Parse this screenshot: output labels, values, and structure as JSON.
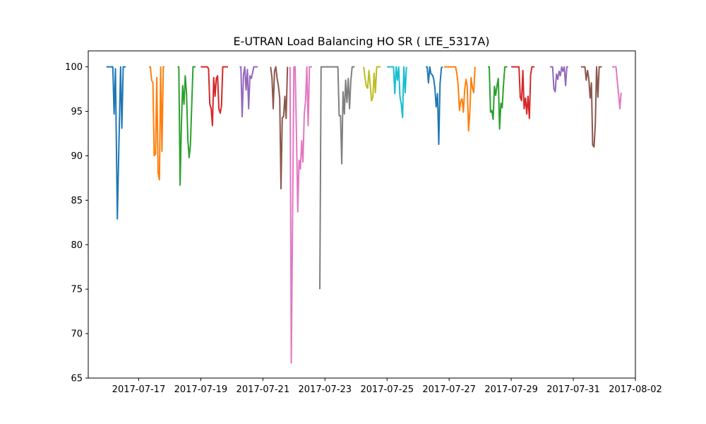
{
  "chart_data": {
    "type": "line",
    "title": "E-UTRAN Load Balancing HO SR ( LTE_5317A)",
    "xlabel": "",
    "ylabel": "",
    "x_axis": {
      "type": "date",
      "range": [
        "2017-07-15 09:00",
        "2017-08-02 00:00"
      ],
      "ticks": [
        "2017-07-17",
        "2017-07-19",
        "2017-07-21",
        "2017-07-23",
        "2017-07-25",
        "2017-07-27",
        "2017-07-29",
        "2017-07-31",
        "2017-08-02"
      ]
    },
    "y_axis": {
      "range": [
        65,
        101.8
      ],
      "ticks": [
        65,
        70,
        75,
        80,
        85,
        90,
        95,
        100
      ]
    },
    "grid": false,
    "legend": "none",
    "series": [
      {
        "color": "#1f77b4",
        "points": [
          [
            "2017-07-15 23:00",
            100
          ],
          [
            "2017-07-16 03:00",
            100
          ],
          [
            "2017-07-16 04:00",
            100
          ],
          [
            "2017-07-16 05:00",
            94.7
          ],
          [
            "2017-07-16 06:00",
            99.8
          ],
          [
            "2017-07-16 07:30",
            82.9
          ],
          [
            "2017-07-16 10:00",
            100
          ],
          [
            "2017-07-16 11:00",
            93.1
          ],
          [
            "2017-07-16 12:00",
            100
          ],
          [
            "2017-07-16 14:00",
            100
          ]
        ]
      },
      {
        "color": "#ff7f0e",
        "points": [
          [
            "2017-07-17 08:00",
            100
          ],
          [
            "2017-07-17 09:00",
            100
          ],
          [
            "2017-07-17 10:00",
            98.5
          ],
          [
            "2017-07-17 11:00",
            98.2
          ],
          [
            "2017-07-17 12:00",
            90
          ],
          [
            "2017-07-17 13:00",
            90.2
          ],
          [
            "2017-07-17 14:00",
            98.8
          ],
          [
            "2017-07-17 15:00",
            88.1
          ],
          [
            "2017-07-17 16:00",
            87.3
          ],
          [
            "2017-07-17 17:00",
            100
          ],
          [
            "2017-07-17 18:00",
            90.5
          ],
          [
            "2017-07-17 19:00",
            100
          ],
          [
            "2017-07-17 20:00",
            100
          ]
        ]
      },
      {
        "color": "#2ca02c",
        "points": [
          [
            "2017-07-18 06:00",
            100
          ],
          [
            "2017-07-18 07:00",
            100
          ],
          [
            "2017-07-18 08:00",
            86.7
          ],
          [
            "2017-07-18 09:00",
            93.5
          ],
          [
            "2017-07-18 10:00",
            97.9
          ],
          [
            "2017-07-18 11:00",
            95.8
          ],
          [
            "2017-07-18 12:00",
            99
          ],
          [
            "2017-07-18 13:00",
            97
          ],
          [
            "2017-07-18 14:00",
            91.8
          ],
          [
            "2017-07-18 15:00",
            89.8
          ],
          [
            "2017-07-18 16:00",
            91.2
          ],
          [
            "2017-07-18 18:00",
            100
          ],
          [
            "2017-07-18 20:00",
            100
          ]
        ]
      },
      {
        "color": "#d62728",
        "points": [
          [
            "2017-07-19 00:00",
            100
          ],
          [
            "2017-07-19 05:00",
            100
          ],
          [
            "2017-07-19 06:00",
            99.8
          ],
          [
            "2017-07-19 07:00",
            95.8
          ],
          [
            "2017-07-19 08:00",
            95.3
          ],
          [
            "2017-07-19 09:00",
            93.4
          ],
          [
            "2017-07-19 10:00",
            98.8
          ],
          [
            "2017-07-19 11:00",
            96.7
          ],
          [
            "2017-07-19 12:00",
            98.7
          ],
          [
            "2017-07-19 13:00",
            99
          ],
          [
            "2017-07-19 14:00",
            95.3
          ],
          [
            "2017-07-19 15:00",
            94.8
          ],
          [
            "2017-07-19 16:00",
            95.6
          ],
          [
            "2017-07-19 17:00",
            100
          ],
          [
            "2017-07-19 21:00",
            100
          ]
        ]
      },
      {
        "color": "#9467bd",
        "points": [
          [
            "2017-07-20 06:00",
            100
          ],
          [
            "2017-07-20 07:00",
            100
          ],
          [
            "2017-07-20 08:00",
            94.4
          ],
          [
            "2017-07-20 09:00",
            99.1
          ],
          [
            "2017-07-20 10:00",
            100
          ],
          [
            "2017-07-20 11:00",
            97.4
          ],
          [
            "2017-07-20 12:00",
            99.7
          ],
          [
            "2017-07-20 13:00",
            95.3
          ],
          [
            "2017-07-20 14:00",
            99
          ],
          [
            "2017-07-20 15:00",
            98.7
          ],
          [
            "2017-07-20 16:00",
            99.3
          ],
          [
            "2017-07-20 17:00",
            100
          ],
          [
            "2017-07-20 20:00",
            100
          ]
        ]
      },
      {
        "color": "#8c564b",
        "points": [
          [
            "2017-07-21 06:00",
            100
          ],
          [
            "2017-07-21 07:00",
            98.8
          ],
          [
            "2017-07-21 08:00",
            95.3
          ],
          [
            "2017-07-21 09:00",
            99.5
          ],
          [
            "2017-07-21 10:00",
            100
          ],
          [
            "2017-07-21 11:00",
            98.7
          ],
          [
            "2017-07-21 12:00",
            97.9
          ],
          [
            "2017-07-21 13:00",
            96.5
          ],
          [
            "2017-07-21 14:00",
            86.3
          ],
          [
            "2017-07-21 15:00",
            94.3
          ],
          [
            "2017-07-21 16:00",
            94.4
          ],
          [
            "2017-07-21 17:00",
            96.7
          ],
          [
            "2017-07-21 18:00",
            94.2
          ],
          [
            "2017-07-21 19:00",
            100
          ]
        ]
      },
      {
        "color": "#e377c2",
        "points": [
          [
            "2017-07-21 21:00",
            100
          ],
          [
            "2017-07-21 22:00",
            66.7
          ],
          [
            "2017-07-22 00:00",
            100
          ],
          [
            "2017-07-22 01:00",
            100
          ],
          [
            "2017-07-22 02:00",
            92
          ],
          [
            "2017-07-22 03:00",
            83.7
          ],
          [
            "2017-07-22 04:00",
            89.5
          ],
          [
            "2017-07-22 05:00",
            88.5
          ],
          [
            "2017-07-22 06:00",
            91.7
          ],
          [
            "2017-07-22 07:00",
            89.3
          ],
          [
            "2017-07-22 08:00",
            94.7
          ],
          [
            "2017-07-22 09:00",
            96.2
          ],
          [
            "2017-07-22 10:00",
            100
          ],
          [
            "2017-07-22 11:00",
            93.4
          ],
          [
            "2017-07-22 12:00",
            100
          ],
          [
            "2017-07-22 14:00",
            100
          ]
        ]
      },
      {
        "color": "#7f7f7f",
        "points": [
          [
            "2017-07-22 20:00",
            75
          ],
          [
            "2017-07-22 21:00",
            100
          ],
          [
            "2017-07-23 10:00",
            100
          ],
          [
            "2017-07-23 11:00",
            94.5
          ],
          [
            "2017-07-23 12:00",
            94.5
          ],
          [
            "2017-07-23 13:00",
            89.1
          ],
          [
            "2017-07-23 14:00",
            97.2
          ],
          [
            "2017-07-23 15:00",
            94.7
          ],
          [
            "2017-07-23 16:00",
            98.5
          ],
          [
            "2017-07-23 17:00",
            96
          ],
          [
            "2017-07-23 18:00",
            98.7
          ],
          [
            "2017-07-23 19:00",
            95.3
          ],
          [
            "2017-07-23 20:00",
            98.4
          ],
          [
            "2017-07-23 21:00",
            100
          ],
          [
            "2017-07-23 23:00",
            100
          ]
        ]
      },
      {
        "color": "#bcbd22",
        "points": [
          [
            "2017-07-24 06:00",
            100
          ],
          [
            "2017-07-24 07:00",
            98.7
          ],
          [
            "2017-07-24 08:00",
            97.8
          ],
          [
            "2017-07-24 09:00",
            97.6
          ],
          [
            "2017-07-24 10:00",
            99.6
          ],
          [
            "2017-07-24 11:00",
            98
          ],
          [
            "2017-07-24 12:00",
            96.2
          ],
          [
            "2017-07-24 13:00",
            96.6
          ],
          [
            "2017-07-24 14:00",
            99.3
          ],
          [
            "2017-07-24 15:00",
            97.1
          ],
          [
            "2017-07-24 16:00",
            100
          ],
          [
            "2017-07-24 19:00",
            100
          ]
        ]
      },
      {
        "color": "#17becf",
        "points": [
          [
            "2017-07-25 00:00",
            100
          ],
          [
            "2017-07-25 04:00",
            100
          ],
          [
            "2017-07-25 05:00",
            100
          ],
          [
            "2017-07-25 06:00",
            97
          ],
          [
            "2017-07-25 07:00",
            100
          ],
          [
            "2017-07-25 08:00",
            98.5
          ],
          [
            "2017-07-25 09:00",
            100
          ],
          [
            "2017-07-25 10:00",
            96.7
          ],
          [
            "2017-07-25 11:00",
            95.8
          ],
          [
            "2017-07-25 12:00",
            94.3
          ],
          [
            "2017-07-25 13:00",
            100
          ],
          [
            "2017-07-25 14:00",
            97.1
          ],
          [
            "2017-07-25 15:00",
            100
          ]
        ]
      },
      {
        "color": "#1f77b4",
        "points": [
          [
            "2017-07-26 06:00",
            100
          ],
          [
            "2017-07-26 07:00",
            100
          ],
          [
            "2017-07-26 08:00",
            98.2
          ],
          [
            "2017-07-26 09:00",
            100
          ],
          [
            "2017-07-26 10:00",
            99.2
          ],
          [
            "2017-07-26 11:00",
            99.1
          ],
          [
            "2017-07-26 12:00",
            98.7
          ],
          [
            "2017-07-26 13:00",
            97.6
          ],
          [
            "2017-07-26 14:00",
            95.5
          ],
          [
            "2017-07-26 15:00",
            97
          ],
          [
            "2017-07-26 16:00",
            91.3
          ],
          [
            "2017-07-26 17:00",
            98.1
          ],
          [
            "2017-07-26 18:00",
            99.9
          ],
          [
            "2017-07-26 19:00",
            100
          ]
        ]
      },
      {
        "color": "#ff7f0e",
        "points": [
          [
            "2017-07-26 20:00",
            100
          ],
          [
            "2017-07-27 05:00",
            100
          ],
          [
            "2017-07-27 06:00",
            99.2
          ],
          [
            "2017-07-27 07:00",
            97.9
          ],
          [
            "2017-07-27 08:00",
            95.1
          ],
          [
            "2017-07-27 09:00",
            96.2
          ],
          [
            "2017-07-27 10:00",
            96.4
          ],
          [
            "2017-07-27 11:00",
            94.9
          ],
          [
            "2017-07-27 12:00",
            97.4
          ],
          [
            "2017-07-27 13:00",
            98.6
          ],
          [
            "2017-07-27 14:00",
            97.8
          ],
          [
            "2017-07-27 15:00",
            92.8
          ],
          [
            "2017-07-27 16:00",
            94.9
          ],
          [
            "2017-07-27 17:00",
            98.8
          ],
          [
            "2017-07-27 18:00",
            97.7
          ],
          [
            "2017-07-27 19:00",
            97.1
          ],
          [
            "2017-07-27 20:00",
            100
          ]
        ]
      },
      {
        "color": "#2ca02c",
        "points": [
          [
            "2017-07-28 06:00",
            100
          ],
          [
            "2017-07-28 07:00",
            100
          ],
          [
            "2017-07-28 08:00",
            94.9
          ],
          [
            "2017-07-28 09:00",
            95.1
          ],
          [
            "2017-07-28 10:00",
            94.1
          ],
          [
            "2017-07-28 11:00",
            97.8
          ],
          [
            "2017-07-28 12:00",
            96.8
          ],
          [
            "2017-07-28 13:00",
            97.9
          ],
          [
            "2017-07-28 14:00",
            98.7
          ],
          [
            "2017-07-28 15:00",
            93
          ],
          [
            "2017-07-28 16:00",
            95.9
          ],
          [
            "2017-07-28 17:00",
            95.4
          ],
          [
            "2017-07-28 18:00",
            97.9
          ],
          [
            "2017-07-28 19:00",
            100
          ],
          [
            "2017-07-28 21:00",
            100
          ]
        ]
      },
      {
        "color": "#d62728",
        "points": [
          [
            "2017-07-29 00:00",
            100
          ],
          [
            "2017-07-29 05:00",
            100
          ],
          [
            "2017-07-29 06:00",
            100
          ],
          [
            "2017-07-29 07:00",
            96.6
          ],
          [
            "2017-07-29 08:00",
            96.2
          ],
          [
            "2017-07-29 09:00",
            99.6
          ],
          [
            "2017-07-29 10:00",
            95.3
          ],
          [
            "2017-07-29 11:00",
            96.5
          ],
          [
            "2017-07-29 12:00",
            94.7
          ],
          [
            "2017-07-29 13:00",
            96.7
          ],
          [
            "2017-07-29 14:00",
            94.2
          ],
          [
            "2017-07-29 15:00",
            99.1
          ],
          [
            "2017-07-29 16:00",
            100
          ],
          [
            "2017-07-29 18:00",
            100
          ]
        ]
      },
      {
        "color": "#9467bd",
        "points": [
          [
            "2017-07-30 06:00",
            100
          ],
          [
            "2017-07-30 07:00",
            100
          ],
          [
            "2017-07-30 08:00",
            100
          ],
          [
            "2017-07-30 09:00",
            97.5
          ],
          [
            "2017-07-30 10:00",
            97.2
          ],
          [
            "2017-07-30 11:00",
            99.2
          ],
          [
            "2017-07-30 12:00",
            98.6
          ],
          [
            "2017-07-30 13:00",
            99.5
          ],
          [
            "2017-07-30 14:00",
            99
          ],
          [
            "2017-07-30 15:00",
            100
          ],
          [
            "2017-07-30 16:00",
            99.5
          ],
          [
            "2017-07-30 17:00",
            100
          ],
          [
            "2017-07-30 18:00",
            97.9
          ],
          [
            "2017-07-30 19:00",
            100
          ],
          [
            "2017-07-30 20:00",
            100
          ]
        ]
      },
      {
        "color": "#8c564b",
        "points": [
          [
            "2017-07-31 06:00",
            100
          ],
          [
            "2017-07-31 07:00",
            100
          ],
          [
            "2017-07-31 08:00",
            100
          ],
          [
            "2017-07-31 09:00",
            100
          ],
          [
            "2017-07-31 10:00",
            98.5
          ],
          [
            "2017-07-31 11:00",
            99.6
          ],
          [
            "2017-07-31 12:00",
            98.7
          ],
          [
            "2017-07-31 13:00",
            96.5
          ],
          [
            "2017-07-31 14:00",
            98.2
          ],
          [
            "2017-07-31 15:00",
            91.2
          ],
          [
            "2017-07-31 16:00",
            91
          ],
          [
            "2017-07-31 17:00",
            93.5
          ],
          [
            "2017-07-31 18:00",
            100
          ],
          [
            "2017-07-31 19:00",
            96.6
          ],
          [
            "2017-07-31 20:00",
            100
          ],
          [
            "2017-07-31 22:00",
            100
          ]
        ]
      },
      {
        "color": "#e377c2",
        "points": [
          [
            "2017-08-01 06:00",
            100
          ],
          [
            "2017-08-01 08:00",
            100
          ],
          [
            "2017-08-01 09:00",
            100
          ],
          [
            "2017-08-01 10:00",
            98.4
          ],
          [
            "2017-08-01 11:00",
            96.9
          ],
          [
            "2017-08-01 12:00",
            95.3
          ],
          [
            "2017-08-01 13:00",
            97.1
          ]
        ]
      }
    ]
  }
}
